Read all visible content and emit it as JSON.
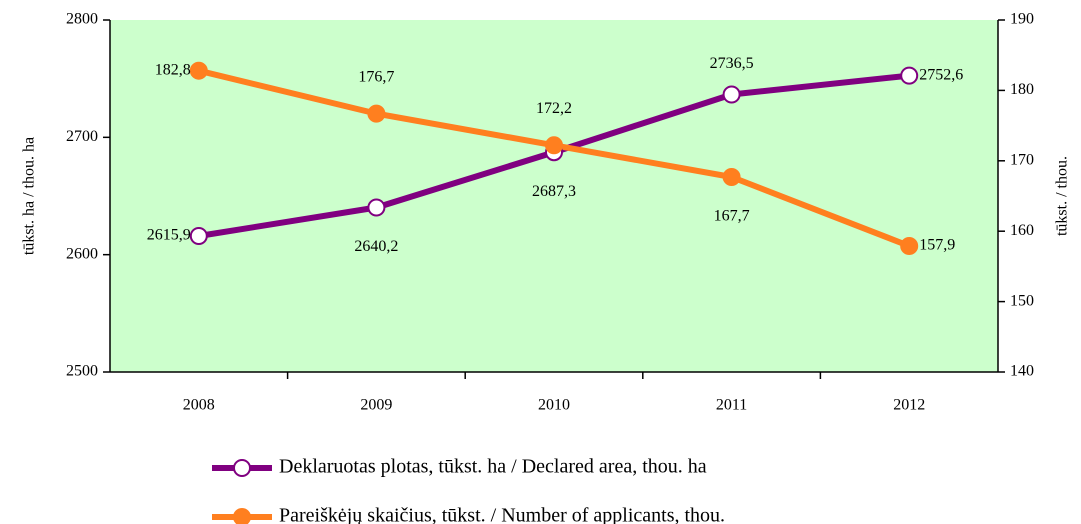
{
  "chart_data": {
    "type": "line",
    "categories": [
      "2008",
      "2009",
      "2010",
      "2011",
      "2012"
    ],
    "ylabel": "tūkst. ha / thou. ha",
    "y2label": "tūkst. / thou.",
    "ylim": [
      2500,
      2800
    ],
    "yticks": [
      2500,
      2600,
      2700,
      2800
    ],
    "y2lim": [
      140,
      190
    ],
    "y2ticks": [
      140,
      150,
      160,
      170,
      180,
      190
    ],
    "background": "#ccffcc",
    "series": [
      {
        "name": "Deklaruotas plotas, tūkst. ha / Declared area, thou. ha",
        "color": "#800080",
        "marker": "open",
        "values": [
          2615.9,
          2640.2,
          2687.3,
          2736.5,
          2752.6
        ],
        "value_labels": [
          "2615,9",
          "2640,2",
          "2687,3",
          "2736,5",
          "2752,6"
        ]
      },
      {
        "name": "Pareiškėjų skaičius, tūkst. / Number of applicants, thou.",
        "color": "#ff7f1f",
        "marker": "filled",
        "axis": "y2",
        "values": [
          182.8,
          176.7,
          172.2,
          167.7,
          157.9
        ],
        "value_labels": [
          "182,8",
          "176,7",
          "172,2",
          "167,7",
          "157,9"
        ]
      }
    ]
  }
}
